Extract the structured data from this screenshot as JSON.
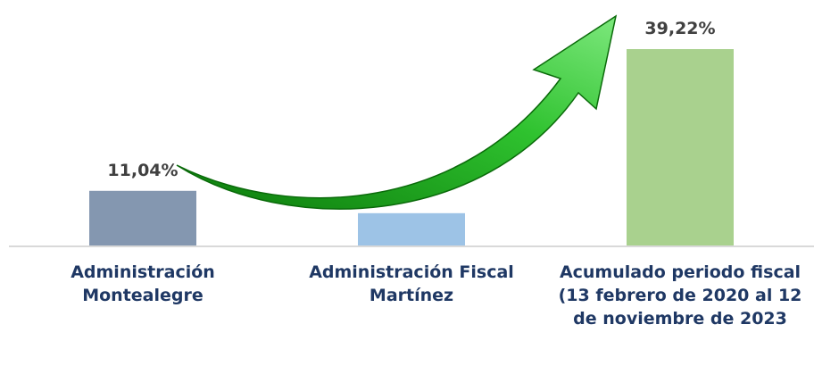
{
  "chart_data": {
    "type": "bar",
    "categories": [
      "Administración Montealegre",
      "Administración Fiscal Martínez",
      "Acumulado periodo fiscal (13 febrero de 2020 al 12 de noviembre de 2023"
    ],
    "values": [
      11.04,
      6.6,
      39.22
    ],
    "value_labels": [
      "11,04%",
      null,
      "39,22%"
    ],
    "colors": [
      "#8497b0",
      "#9dc3e6",
      "#a9d18e"
    ]
  }
}
